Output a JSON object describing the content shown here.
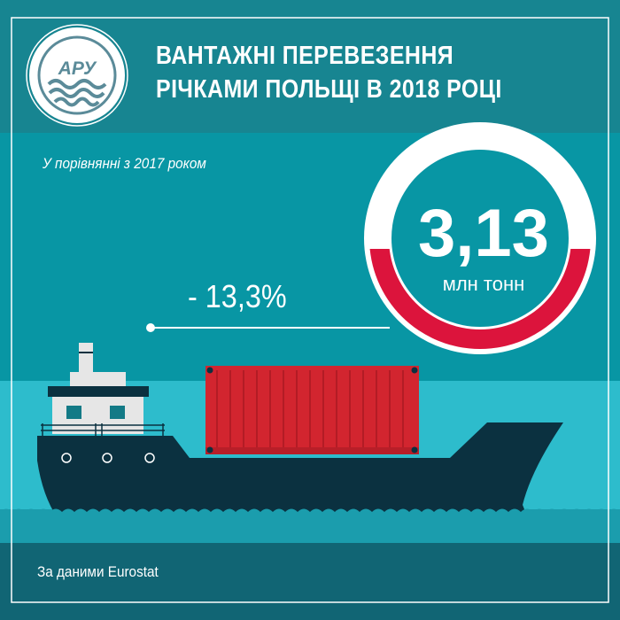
{
  "header": {
    "logo_text": "АРУ",
    "title_line1": "ВАНТАЖНІ ПЕРЕВЕЗЕННЯ",
    "title_line2": "РІЧКАМИ ПОЛЬЩІ В 2018 РОЦІ"
  },
  "main": {
    "comparison_label": "У порівнянні з 2017 роком",
    "change": "- 13,3%",
    "value": "3,13",
    "unit": "млн тонн"
  },
  "footer": {
    "source": "За даними Eurostat"
  },
  "colors": {
    "header_bg": "#178591",
    "main_bg": "#0896a4",
    "water": "#2dbccc",
    "footer_bg": "#116574",
    "ring_red": "#dc143c",
    "hull": "#0b3140",
    "container": "#d2252f"
  }
}
